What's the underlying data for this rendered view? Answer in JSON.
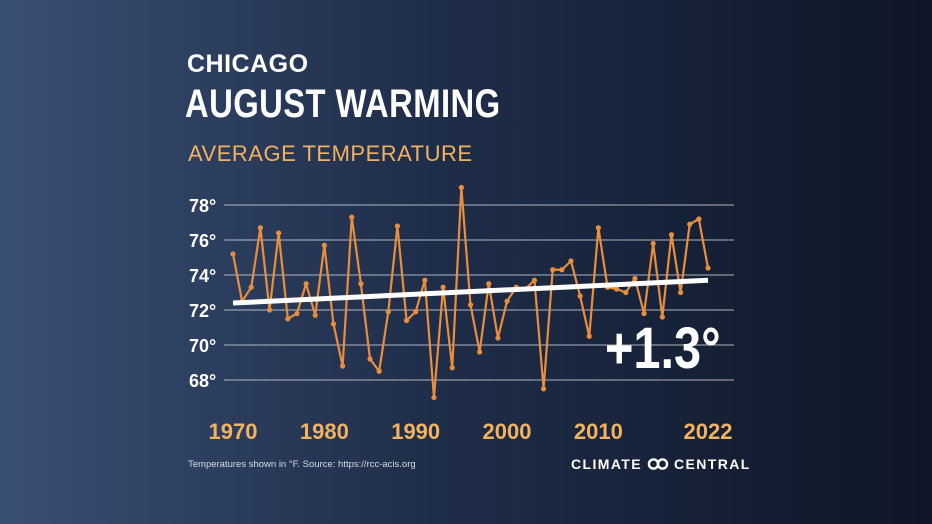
{
  "header": {
    "city": "CHICAGO",
    "headline": "AUGUST WARMING",
    "subtitle": "AVERAGE TEMPERATURE"
  },
  "footer": {
    "source": "Temperatures shown in °F. Source: https://rcc-acis.org",
    "brand_left": "CLIMATE",
    "brand_right": "CENTRAL",
    "brand_icon": "infinity-logo-icon"
  },
  "colors": {
    "series": "#e88e3d",
    "trend": "#ffffff",
    "axis_labels": "#f3b25e",
    "grid": "#c9ced8"
  },
  "chart_data": {
    "type": "line",
    "title": "AUGUST WARMING",
    "subtitle": "AVERAGE TEMPERATURE",
    "x_tick_labels": [
      "1970",
      "1980",
      "1990",
      "2000",
      "2010",
      "2022"
    ],
    "y_tick_labels": [
      "68°",
      "70°",
      "72°",
      "74°",
      "76°",
      "78°"
    ],
    "y_ticks": [
      68,
      70,
      72,
      74,
      76,
      78
    ],
    "xlim": [
      1970,
      2022
    ],
    "ylim": [
      67.2,
      79.4
    ],
    "grid": true,
    "annotation": "+1.3°",
    "x": [
      1970,
      1971,
      1972,
      1973,
      1974,
      1975,
      1976,
      1977,
      1978,
      1979,
      1980,
      1981,
      1982,
      1983,
      1984,
      1985,
      1986,
      1987,
      1988,
      1989,
      1990,
      1991,
      1992,
      1993,
      1994,
      1995,
      1996,
      1997,
      1998,
      1999,
      2000,
      2001,
      2002,
      2003,
      2004,
      2005,
      2006,
      2007,
      2008,
      2009,
      2010,
      2011,
      2012,
      2013,
      2014,
      2015,
      2016,
      2017,
      2018,
      2019,
      2020,
      2021,
      2022
    ],
    "series": [
      {
        "values": [
          75.2,
          72.5,
          73.3,
          76.7,
          72.0,
          76.4,
          71.5,
          71.8,
          73.5,
          71.7,
          75.7,
          71.2,
          68.8,
          77.3,
          73.5,
          69.2,
          68.5,
          71.9,
          76.8,
          71.4,
          71.9,
          73.7,
          67.0,
          73.3,
          68.7,
          79.0,
          72.3,
          69.6,
          73.5,
          70.4,
          72.5,
          73.3,
          73.2,
          73.7,
          67.5,
          74.3,
          74.3,
          74.8,
          72.8,
          70.5,
          76.7,
          73.3,
          73.2,
          73.0,
          73.8,
          71.8,
          75.8,
          71.6,
          76.3,
          73.0,
          76.9,
          77.2,
          74.4
        ]
      },
      {
        "values": [
          72.4,
          73.7
        ],
        "x": [
          1970,
          2022
        ]
      }
    ]
  }
}
